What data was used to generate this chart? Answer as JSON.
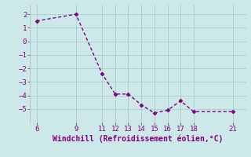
{
  "x": [
    6,
    9,
    11,
    12,
    13,
    14,
    15,
    16,
    17,
    18,
    21
  ],
  "y": [
    1.5,
    2.0,
    -2.4,
    -3.9,
    -3.9,
    -4.7,
    -5.3,
    -5.1,
    -4.4,
    -5.2,
    -5.2
  ],
  "line_color": "#800080",
  "marker": "D",
  "marker_size": 2.5,
  "xlabel": "Windchill (Refroidissement éolien,°C)",
  "ylabel": "",
  "xlim": [
    5.5,
    22
  ],
  "ylim": [
    -6,
    2.7
  ],
  "xticks": [
    6,
    9,
    11,
    12,
    13,
    14,
    15,
    16,
    17,
    18,
    21
  ],
  "yticks": [
    -5,
    -4,
    -3,
    -2,
    -1,
    0,
    1,
    2
  ],
  "background_color": "#cce8e8",
  "grid_color": "#aacccc",
  "xlabel_fontsize": 7,
  "tick_fontsize": 6.5,
  "line_width": 1.0
}
